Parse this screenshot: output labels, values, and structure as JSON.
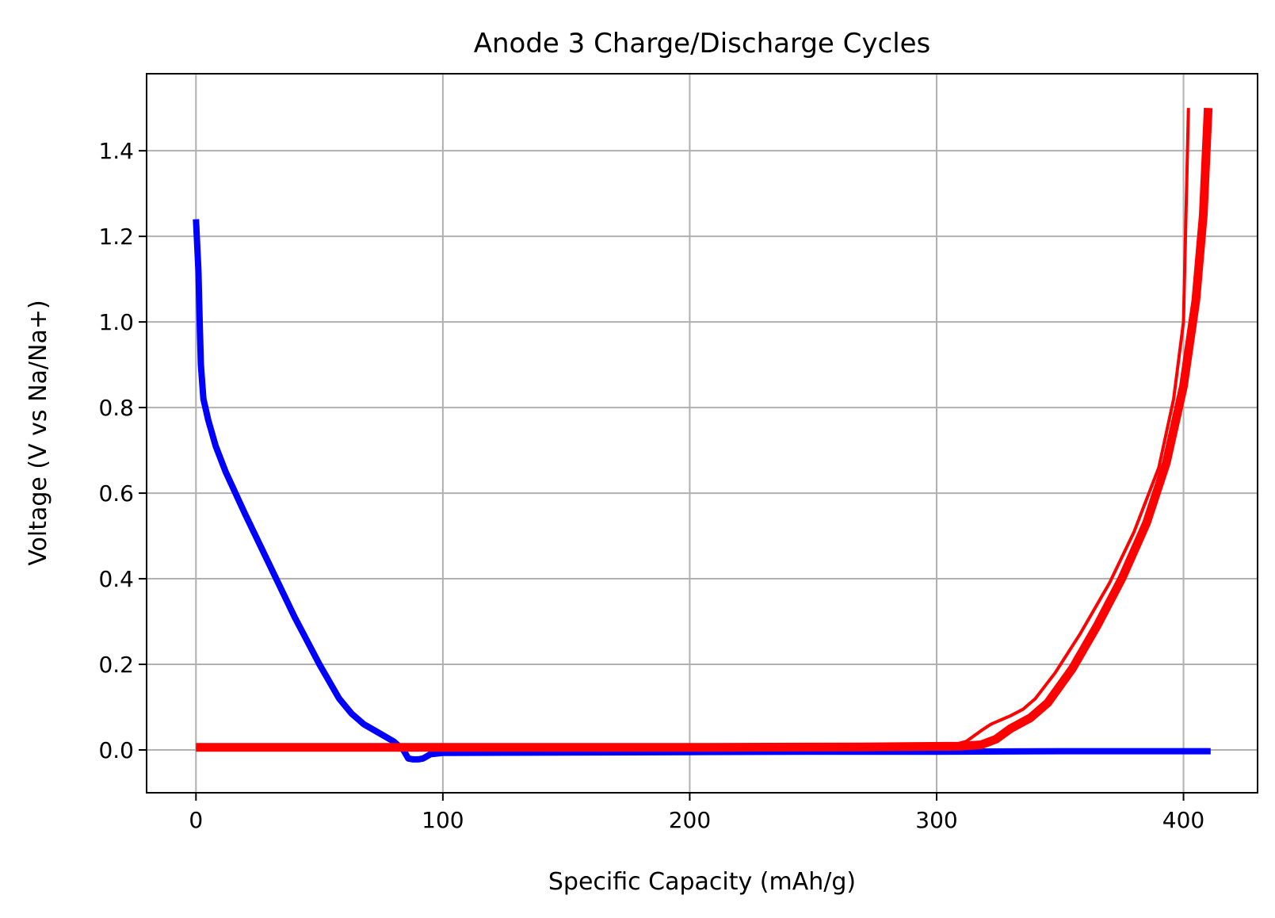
{
  "chart_data": {
    "type": "line",
    "title": "Anode 3 Charge/Discharge Cycles",
    "xlabel": "Specific Capacity (mAh/g)",
    "ylabel": "Voltage (V vs Na/Na+)",
    "xlim": [
      -20,
      430
    ],
    "ylim": [
      -0.1,
      1.58
    ],
    "xticks": [
      0,
      100,
      200,
      300,
      400
    ],
    "yticks": [
      0.0,
      0.2,
      0.4,
      0.6,
      0.8,
      1.0,
      1.2,
      1.4
    ],
    "xtick_labels": [
      "0",
      "100",
      "200",
      "300",
      "400"
    ],
    "ytick_labels": [
      "0.0",
      "0.2",
      "0.4",
      "0.6",
      "0.8",
      "1.0",
      "1.2",
      "1.4"
    ],
    "grid": true,
    "colors": {
      "discharge": "#0000ff",
      "charge": "#ff0000",
      "grid": "#b0b0b0"
    },
    "series": [
      {
        "color": "#0000ff",
        "width": 8,
        "x": [
          0,
          1,
          1.5,
          2,
          3,
          5,
          8,
          12,
          20,
          30,
          40,
          50,
          58,
          63,
          68,
          74,
          80,
          84,
          86,
          88,
          90,
          92,
          95,
          100,
          150,
          200,
          250,
          300,
          350,
          411
        ],
        "y": [
          1.24,
          1.12,
          1.0,
          0.9,
          0.82,
          0.77,
          0.71,
          0.65,
          0.55,
          0.43,
          0.31,
          0.2,
          0.12,
          0.085,
          0.06,
          0.04,
          0.02,
          0.0,
          -0.02,
          -0.022,
          -0.022,
          -0.02,
          -0.01,
          -0.007,
          -0.006,
          -0.005,
          -0.004,
          -0.004,
          -0.003,
          -0.003
        ]
      },
      {
        "color": "#ff0000",
        "width": 4,
        "x": [
          0,
          100,
          200,
          270,
          305,
          312,
          318,
          322,
          330,
          335,
          340,
          348,
          358,
          370,
          380,
          390,
          396,
          400,
          402
        ],
        "y": [
          0.006,
          0.006,
          0.006,
          0.007,
          0.009,
          0.02,
          0.045,
          0.06,
          0.08,
          0.095,
          0.12,
          0.18,
          0.27,
          0.39,
          0.51,
          0.66,
          0.82,
          1.0,
          1.5
        ]
      },
      {
        "color": "#ff0000",
        "width": 11,
        "x": [
          0,
          100,
          200,
          270,
          310,
          318,
          324,
          330,
          338,
          345,
          355,
          365,
          375,
          385,
          393,
          400,
          405,
          408,
          410
        ],
        "y": [
          0.006,
          0.006,
          0.006,
          0.007,
          0.009,
          0.012,
          0.025,
          0.05,
          0.075,
          0.11,
          0.19,
          0.29,
          0.4,
          0.53,
          0.67,
          0.85,
          1.05,
          1.25,
          1.5
        ]
      }
    ]
  }
}
